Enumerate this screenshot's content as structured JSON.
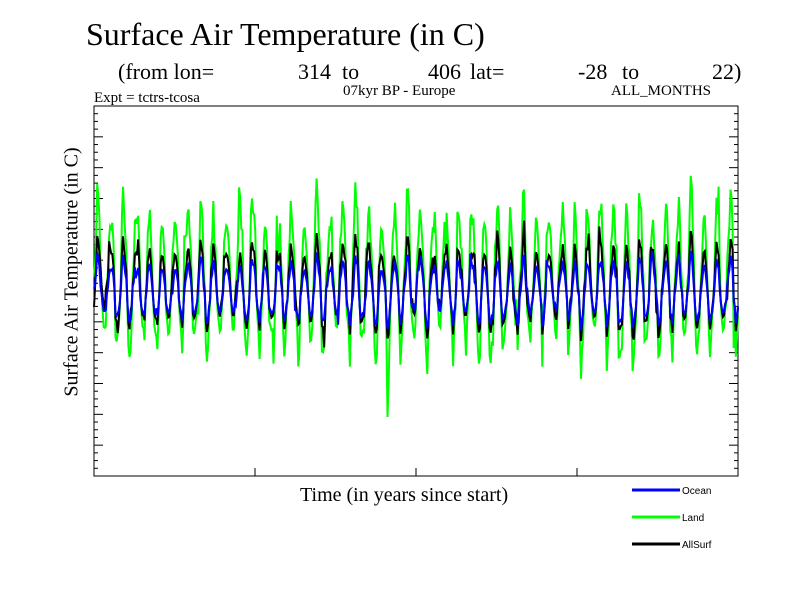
{
  "header": {
    "title": "Surface Air Temperature (in C)",
    "from_lon_label": "(from lon=",
    "lon_start": "314",
    "to_label_1": "to",
    "lon_end": "406",
    "lat_label": "lat=",
    "lat_start": "-28",
    "to_label_2": "to",
    "lat_end": "22)",
    "expt": "Expt = tctrs-tcosa",
    "period_region": "07kyr BP - Europe",
    "months": "ALL_MONTHS"
  },
  "chart_data": {
    "type": "line",
    "title": "Surface Air Temperature (in C)",
    "xlabel": "Time (in years since start)",
    "ylabel": "Surface Air Temperature (in C)",
    "xlim": [
      0,
      100
    ],
    "ylim": [
      -6,
      6
    ],
    "reference_line": 0,
    "legend_position": "bottom-right",
    "n_points": 600,
    "series": [
      {
        "name": "Ocean",
        "color": "#0000ff",
        "cycle_amplitude": 1.0,
        "noise": 0.6,
        "offset": 0.0
      },
      {
        "name": "Land",
        "color": "#00ff00",
        "cycle_amplitude": 2.5,
        "noise": 1.6,
        "offset": 0.4
      },
      {
        "name": "AllSurf",
        "color": "#000000",
        "cycle_amplitude": 1.4,
        "noise": 0.8,
        "offset": 0.15
      }
    ]
  }
}
